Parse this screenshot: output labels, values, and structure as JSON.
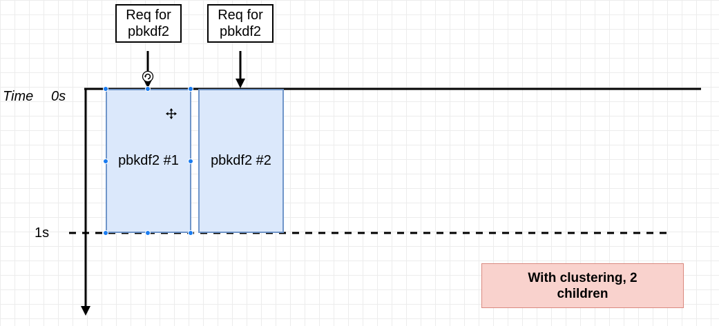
{
  "timeline": {
    "time_label": "Time",
    "start_label": "0s",
    "end_label": "1s"
  },
  "requests": [
    {
      "label": "Req for\npbkdf2"
    },
    {
      "label": "Req for\npbkdf2"
    }
  ],
  "blocks": [
    {
      "label": "pbkdf2 #1",
      "selected": true
    },
    {
      "label": "pbkdf2 #2",
      "selected": false
    }
  ],
  "note": {
    "text": "With clustering, 2\nchildren"
  },
  "icons": [
    "rotate-handle-icon",
    "move-cursor-icon"
  ],
  "colors": {
    "block_fill": "#dbe8fb",
    "block_border": "#6f95c9",
    "selection_handle": "#1a7cf0",
    "note_fill": "#f9d2cd",
    "note_border": "#d9887e"
  }
}
